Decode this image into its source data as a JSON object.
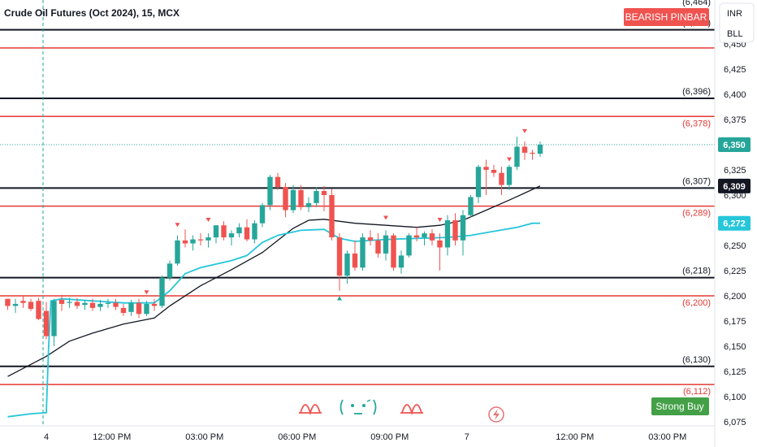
{
  "header": {
    "title": "Crude Oil Futures (Oct 2024), 15, MCX"
  },
  "controls": {
    "currency": "INR",
    "unit": "BLL"
  },
  "badges": {
    "top": "BEARISH PINBAR",
    "bottom": "Strong Buy"
  },
  "colors": {
    "up": "#26a69a",
    "down": "#ef5350",
    "ema_fast": "#26c6da",
    "ema_slow": "#131722",
    "sr_black": "#131722",
    "sr_red": "#e53935",
    "badge_red": "#ef5350",
    "badge_green": "#43a047"
  },
  "icons": [
    "bell-pattern-icon",
    "smiley-icon",
    "bell-pattern-icon",
    "lightning-icon"
  ],
  "chart_data": {
    "type": "candlestick",
    "title": "Crude Oil Futures (Oct 2024), 15, MCX",
    "y_axis": {
      "ticks": [
        6075,
        6100,
        6125,
        6150,
        6175,
        6200,
        6225,
        6250,
        6275,
        6300,
        6325,
        6350,
        6375,
        6400,
        6425,
        6450,
        6475
      ],
      "visible_tick_labels": [
        "6,075",
        "6,100",
        "6,125",
        "6,150",
        "6,175",
        "6,200",
        "6,225",
        "6,250",
        "6,325",
        "6,375",
        "6,400",
        "6,425"
      ],
      "range": [
        6072,
        6485
      ]
    },
    "x_axis": {
      "labels": [
        {
          "pos": 0.0,
          "text": "4"
        },
        {
          "pos": 8.5,
          "text": "12:00 PM"
        },
        {
          "pos": 20.5,
          "text": "03:00 PM"
        },
        {
          "pos": 32.5,
          "text": "06:00 PM"
        },
        {
          "pos": 44.5,
          "text": "09:00 PM"
        },
        {
          "pos": 54.5,
          "text": "7"
        },
        {
          "pos": 68.5,
          "text": "12:00 PM"
        },
        {
          "pos": 80.5,
          "text": "03:00 PM"
        }
      ]
    },
    "current_price": {
      "value": 6350,
      "label": "6,350"
    },
    "levels": [
      {
        "value": 6464,
        "label": "(6,464)",
        "color": "black"
      },
      {
        "value": 6446,
        "label": "",
        "color": "red"
      },
      {
        "value": 6396,
        "label": "(6,396)",
        "color": "black"
      },
      {
        "value": 6378,
        "label": "(6,378)",
        "color": "red"
      },
      {
        "value": 6307,
        "label": "(6,307)",
        "color": "black"
      },
      {
        "value": 6289,
        "label": "(6,289)",
        "color": "red"
      },
      {
        "value": 6218,
        "label": "(6,218)",
        "color": "black"
      },
      {
        "value": 6200,
        "label": "(6,200)",
        "color": "red"
      },
      {
        "value": 6130,
        "label": "(6,130)",
        "color": "black"
      },
      {
        "value": 6112,
        "label": "(6,112)",
        "color": "red"
      }
    ],
    "price_tags": [
      {
        "value": 6350,
        "label": "6,350",
        "color": "#26a69a"
      },
      {
        "value": 6309,
        "label": "6,309",
        "color": "#131722"
      },
      {
        "value": 6272,
        "label": "6,272",
        "color": "#26c6da"
      }
    ],
    "candles": [
      [
        -5,
        6197,
        6197,
        6186,
        6190
      ],
      [
        -4,
        6190,
        6197,
        6183,
        6192
      ],
      [
        -3,
        6195,
        6200,
        6188,
        6193
      ],
      [
        -2,
        6194,
        6197,
        6185,
        6187
      ],
      [
        -1,
        6195,
        6198,
        6176,
        6177
      ],
      [
        0,
        6185,
        6194,
        6157,
        6160
      ],
      [
        1,
        6160,
        6197,
        6150,
        6195
      ],
      [
        2,
        6196,
        6201,
        6185,
        6192
      ],
      [
        3,
        6193,
        6198,
        6188,
        6194
      ],
      [
        4,
        6194,
        6198,
        6187,
        6190
      ],
      [
        5,
        6191,
        6196,
        6186,
        6193
      ],
      [
        6,
        6193,
        6197,
        6185,
        6188
      ],
      [
        7,
        6189,
        6196,
        6185,
        6192
      ],
      [
        8,
        6192,
        6197,
        6188,
        6193
      ],
      [
        9,
        6193,
        6197,
        6186,
        6189
      ],
      [
        10,
        6188,
        6192,
        6180,
        6183
      ],
      [
        11,
        6184,
        6196,
        6180,
        6193
      ],
      [
        12,
        6193,
        6197,
        6178,
        6182
      ],
      [
        13,
        6182,
        6195,
        6180,
        6192
      ],
      [
        14,
        6192,
        6197,
        6185,
        6190
      ],
      [
        15,
        6190,
        6220,
        6188,
        6218
      ],
      [
        16,
        6218,
        6235,
        6215,
        6232
      ],
      [
        17,
        6232,
        6260,
        6230,
        6255
      ],
      [
        18,
        6255,
        6266,
        6248,
        6252
      ],
      [
        19,
        6252,
        6260,
        6245,
        6256
      ],
      [
        20,
        6256,
        6262,
        6250,
        6255
      ],
      [
        21,
        6255,
        6262,
        6248,
        6258
      ],
      [
        22,
        6258,
        6270,
        6252,
        6270
      ],
      [
        23,
        6270,
        6274,
        6255,
        6258
      ],
      [
        24,
        6258,
        6265,
        6250,
        6262
      ],
      [
        25,
        6262,
        6272,
        6258,
        6268
      ],
      [
        26,
        6268,
        6276,
        6254,
        6256
      ],
      [
        27,
        6256,
        6275,
        6252,
        6272
      ],
      [
        28,
        6272,
        6292,
        6268,
        6290
      ],
      [
        29,
        6290,
        6320,
        6285,
        6318
      ],
      [
        30,
        6318,
        6322,
        6305,
        6308
      ],
      [
        31,
        6308,
        6312,
        6278,
        6285
      ],
      [
        32,
        6285,
        6310,
        6282,
        6305
      ],
      [
        33,
        6305,
        6310,
        6285,
        6288
      ],
      [
        34,
        6288,
        6298,
        6283,
        6292
      ],
      [
        35,
        6292,
        6308,
        6288,
        6304
      ],
      [
        36,
        6304,
        6309,
        6284,
        6300
      ],
      [
        37,
        6300,
        6306,
        6255,
        6258
      ],
      [
        38,
        6258,
        6262,
        6205,
        6220
      ],
      [
        39,
        6220,
        6245,
        6212,
        6242
      ],
      [
        40,
        6242,
        6255,
        6225,
        6228
      ],
      [
        41,
        6228,
        6262,
        6225,
        6258
      ],
      [
        42,
        6258,
        6265,
        6250,
        6255
      ],
      [
        43,
        6255,
        6262,
        6238,
        6242
      ],
      [
        44,
        6242,
        6265,
        6235,
        6260
      ],
      [
        45,
        6260,
        6262,
        6225,
        6228
      ],
      [
        46,
        6228,
        6245,
        6222,
        6240
      ],
      [
        47,
        6240,
        6262,
        6238,
        6260
      ],
      [
        48,
        6260,
        6268,
        6254,
        6258
      ],
      [
        49,
        6258,
        6264,
        6250,
        6262
      ],
      [
        50,
        6262,
        6266,
        6250,
        6255
      ],
      [
        51,
        6255,
        6262,
        6225,
        6248
      ],
      [
        52,
        6248,
        6280,
        6240,
        6275
      ],
      [
        53,
        6275,
        6282,
        6250,
        6255
      ],
      [
        54,
        6255,
        6285,
        6240,
        6280
      ],
      [
        55,
        6280,
        6300,
        6278,
        6298
      ],
      [
        56,
        6298,
        6330,
        6292,
        6328
      ],
      [
        57,
        6328,
        6335,
        6300,
        6325
      ],
      [
        58,
        6325,
        6330,
        6318,
        6322
      ],
      [
        59,
        6322,
        6328,
        6300,
        6310
      ],
      [
        60,
        6310,
        6330,
        6305,
        6328
      ],
      [
        61,
        6328,
        6358,
        6325,
        6348
      ],
      [
        62,
        6348,
        6353,
        6335,
        6342
      ],
      [
        63,
        6342,
        6345,
        6335,
        6341
      ],
      [
        64,
        6341,
        6353,
        6338,
        6350
      ]
    ],
    "ema_slow": [
      [
        -5,
        6120
      ],
      [
        -3,
        6128
      ],
      [
        0,
        6140
      ],
      [
        3,
        6155
      ],
      [
        6,
        6163
      ],
      [
        10,
        6172
      ],
      [
        14,
        6178
      ],
      [
        16,
        6190
      ],
      [
        20,
        6210
      ],
      [
        24,
        6226
      ],
      [
        28,
        6243
      ],
      [
        30,
        6255
      ],
      [
        32,
        6267
      ],
      [
        34,
        6275
      ],
      [
        36,
        6276
      ],
      [
        40,
        6272
      ],
      [
        44,
        6270
      ],
      [
        48,
        6268
      ],
      [
        51,
        6270
      ],
      [
        54,
        6275
      ],
      [
        57,
        6285
      ],
      [
        60,
        6295
      ],
      [
        62,
        6302
      ],
      [
        64,
        6309
      ]
    ],
    "ema_fast": [
      [
        -5,
        6080
      ],
      [
        -2,
        6083
      ],
      [
        0,
        6084
      ],
      [
        0.3,
        6150
      ],
      [
        0.6,
        6195
      ],
      [
        2,
        6197
      ],
      [
        6,
        6195
      ],
      [
        10,
        6193
      ],
      [
        14,
        6193
      ],
      [
        16,
        6205
      ],
      [
        18,
        6222
      ],
      [
        20,
        6228
      ],
      [
        24,
        6235
      ],
      [
        26,
        6240
      ],
      [
        28,
        6253
      ],
      [
        30,
        6260
      ],
      [
        33,
        6265
      ],
      [
        36,
        6266
      ],
      [
        38,
        6257
      ],
      [
        40,
        6254
      ],
      [
        44,
        6256
      ],
      [
        48,
        6257
      ],
      [
        52,
        6258
      ],
      [
        55,
        6260
      ],
      [
        58,
        6264
      ],
      [
        61,
        6268
      ],
      [
        63,
        6272
      ],
      [
        64,
        6272
      ]
    ],
    "markers": [
      {
        "type": "down",
        "index": 17,
        "price": 6270
      },
      {
        "type": "down",
        "index": 21,
        "price": 6275
      },
      {
        "type": "down",
        "index": 13,
        "price": 6203
      },
      {
        "type": "down",
        "index": 51,
        "price": 6275
      },
      {
        "type": "down",
        "index": 60,
        "price": 6335
      },
      {
        "type": "down",
        "index": 62,
        "price": 6363
      },
      {
        "type": "down",
        "index": 44,
        "price": 6277
      },
      {
        "type": "up",
        "index": 38,
        "price": 6198
      }
    ],
    "vertical_marker": {
      "index": 0
    }
  }
}
